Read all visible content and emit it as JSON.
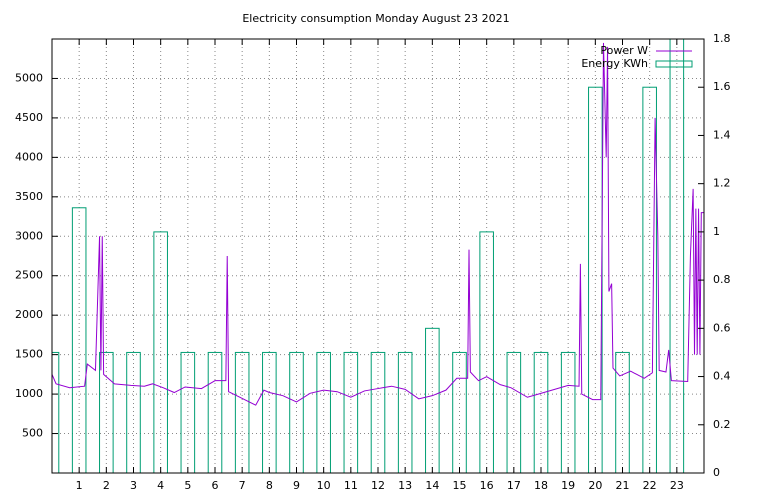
{
  "chart_data": {
    "type": "combo",
    "title": "Electricity consumption Monday August 23 2021",
    "xlim": [
      0,
      24
    ],
    "xticks": [
      1,
      2,
      3,
      4,
      5,
      6,
      7,
      8,
      9,
      10,
      11,
      12,
      13,
      14,
      15,
      16,
      17,
      18,
      19,
      20,
      21,
      22,
      23
    ],
    "ylim": [
      0,
      5500
    ],
    "yticks": [
      500,
      1000,
      1500,
      2000,
      2500,
      3000,
      3500,
      4000,
      4500,
      5000
    ],
    "y2lim": [
      0,
      1.8
    ],
    "y2ticks": [
      0,
      0.2,
      0.4,
      0.6,
      0.8,
      1,
      1.2,
      1.4,
      1.6,
      1.8
    ],
    "grid": true,
    "legend": "top-right",
    "series": [
      {
        "name": "Power W",
        "color": "#9400d3",
        "type": "line",
        "x": [
          0.0,
          0.15,
          0.65,
          1.2,
          1.3,
          1.6,
          1.75,
          1.8,
          1.85,
          1.9,
          2.3,
          2.9,
          3.4,
          3.7,
          4.1,
          4.5,
          4.9,
          5.5,
          6.0,
          6.4,
          6.45,
          6.5,
          6.8,
          7.5,
          7.8,
          8.0,
          8.5,
          9.0,
          9.5,
          10.0,
          10.5,
          11.0,
          11.5,
          12.0,
          12.5,
          13.0,
          13.5,
          14.0,
          14.5,
          14.9,
          15.3,
          15.35,
          15.4,
          15.7,
          16.0,
          16.5,
          16.9,
          17.5,
          17.9,
          18.5,
          19.0,
          19.4,
          19.45,
          19.5,
          19.9,
          20.2,
          20.3,
          20.4,
          20.45,
          20.5,
          20.6,
          20.65,
          20.9,
          21.3,
          21.8,
          22.1,
          22.2,
          22.3,
          22.35,
          22.6,
          22.7,
          22.8,
          23.4,
          23.5,
          23.6,
          23.65,
          23.7,
          23.75,
          23.8,
          23.85,
          23.9,
          24.0
        ],
        "values": [
          1250,
          1130,
          1080,
          1100,
          1380,
          1300,
          3000,
          1300,
          3000,
          1250,
          1130,
          1110,
          1100,
          1130,
          1080,
          1020,
          1090,
          1070,
          1170,
          1170,
          2750,
          1030,
          980,
          860,
          1050,
          1020,
          980,
          900,
          1010,
          1050,
          1030,
          960,
          1040,
          1070,
          1100,
          1060,
          940,
          980,
          1050,
          1200,
          1200,
          2830,
          1280,
          1170,
          1220,
          1120,
          1080,
          960,
          1000,
          1060,
          1110,
          1100,
          2650,
          1000,
          930,
          930,
          5450,
          4000,
          5400,
          2300,
          2400,
          1330,
          1230,
          1290,
          1200,
          1270,
          4500,
          3000,
          1300,
          1280,
          1560,
          1170,
          1160,
          2750,
          3600,
          1500,
          3350,
          1500,
          3350,
          1500,
          3300,
          3300
        ]
      },
      {
        "name": "Energy KWh",
        "color": "#009e73",
        "type": "bar",
        "axis": "y2",
        "x": [
          0,
          1,
          2,
          3,
          4,
          5,
          6,
          7,
          8,
          9,
          10,
          11,
          12,
          13,
          14,
          15,
          16,
          17,
          18,
          19,
          20,
          21,
          22,
          23
        ],
        "values": [
          0.5,
          1.1,
          0.5,
          0.5,
          1.0,
          0.5,
          0.5,
          0.5,
          0.5,
          0.5,
          0.5,
          0.5,
          0.5,
          0.5,
          0.6,
          0.5,
          1.0,
          0.5,
          0.5,
          0.5,
          1.6,
          0.5,
          1.6,
          1.9
        ]
      }
    ]
  }
}
